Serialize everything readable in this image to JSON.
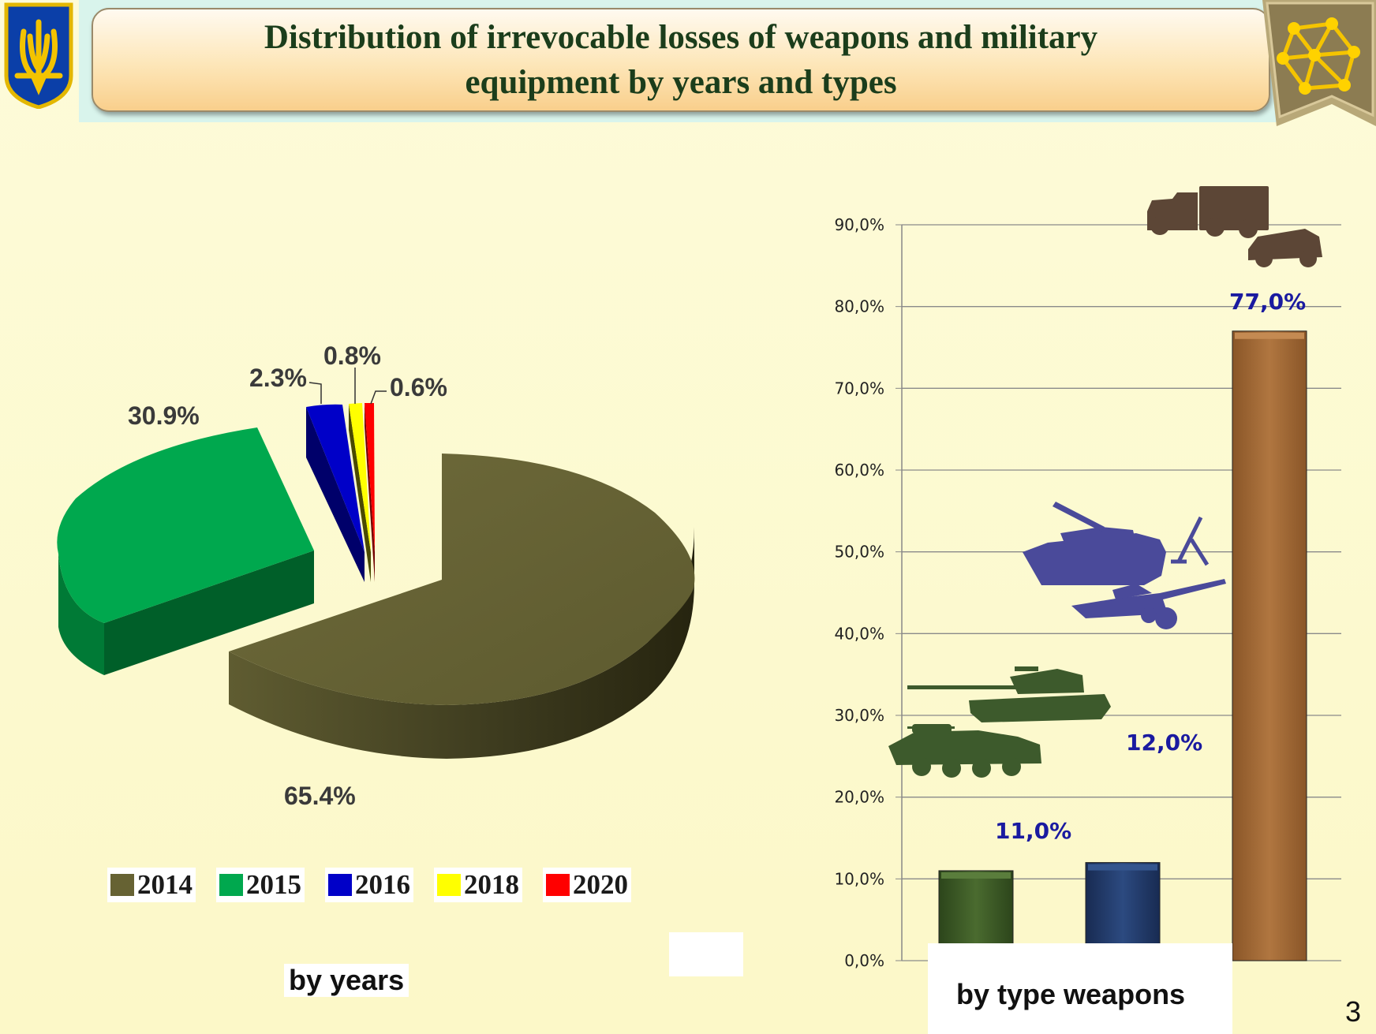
{
  "slide": {
    "title_line1": "Distribution of irrevocable losses of weapons and military",
    "title_line2": "equipment by years  and types",
    "page_number": "3"
  },
  "colors": {
    "y2014": "#666233",
    "y2015": "#00a84e",
    "y2016": "#0000c8",
    "y2018": "#ffff00",
    "y2020": "#ff0000",
    "bar_armor": "#3b5a26",
    "bar_artillery": "#223b6a",
    "bar_vehicles": "#a36a36",
    "label_blue": "#1a1aa0"
  },
  "icons": [
    "trident-emblem-icon",
    "network-emblem-icon",
    "apc-icon",
    "tank-icon",
    "self-propelled-gun-icon",
    "mortar-icon",
    "towed-howitzer-icon",
    "truck-icon",
    "jeep-icon"
  ],
  "chart_data": [
    {
      "type": "pie",
      "title": "",
      "caption": "by years",
      "slices": [
        {
          "label": "2014",
          "value": 65.4,
          "text": "65.4%"
        },
        {
          "label": "2015",
          "value": 30.9,
          "text": "30.9%"
        },
        {
          "label": "2016",
          "value": 2.3,
          "text": "2.3%"
        },
        {
          "label": "2018",
          "value": 0.8,
          "text": "0.8%"
        },
        {
          "label": "2020",
          "value": 0.6,
          "text": "0.6%"
        }
      ],
      "legend": [
        "2014",
        "2015",
        "2016",
        "2018",
        "2020"
      ],
      "legend_placement": "bottom"
    },
    {
      "type": "bar",
      "title": "",
      "caption": "by type weapons",
      "categories": [
        "",
        "",
        ""
      ],
      "values": [
        11.0,
        12.0,
        77.0
      ],
      "data_labels": [
        "11,0%",
        "12,0%",
        "77,0%"
      ],
      "ylim": [
        0,
        90
      ],
      "yticks": [
        "0,0%",
        "10,0%",
        "20,0%",
        "30,0%",
        "40,0%",
        "50,0%",
        "60,0%",
        "70,0%",
        "80,0%",
        "90,0%"
      ],
      "grid": true
    }
  ]
}
